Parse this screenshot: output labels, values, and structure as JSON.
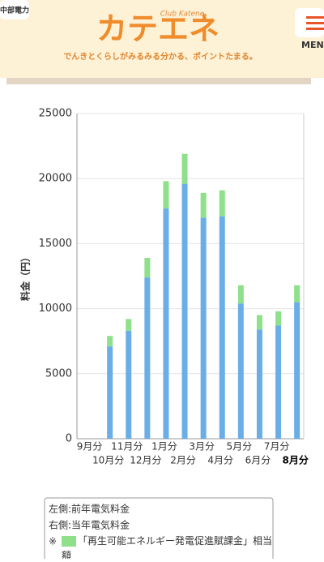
{
  "header": {
    "logo": "中部電力",
    "brand_sub": "Club Katene",
    "brand": "カテエネ",
    "tagline": "でんきとくらしがみるみる分かる、ポイントたまる。",
    "menu": "MENU"
  },
  "chart_data": {
    "type": "bar",
    "stacked": true,
    "y_label": "料金（円）",
    "categories": [
      "9月分",
      "10月分",
      "11月分",
      "12月分",
      "1月分",
      "2月分",
      "3月分",
      "4月分",
      "5月分",
      "6月分",
      "7月分",
      "8月分"
    ],
    "series": [
      {
        "color": "#6aaee8",
        "values": [
          null,
          7100,
          8300,
          12400,
          17700,
          19600,
          17000,
          17100,
          10400,
          8400,
          8700,
          10500
        ]
      },
      {
        "name": "「再生可能エネルギー発電促進賦課金」相当額",
        "color": "#8ee08a",
        "values": [
          null,
          800,
          900,
          1500,
          2100,
          2300,
          1900,
          2000,
          1400,
          1100,
          1100,
          1300
        ]
      }
    ],
    "ylim": [
      0,
      25000
    ],
    "yticks": [
      0,
      5000,
      10000,
      15000,
      20000,
      25000
    ],
    "grid": true
  },
  "legend": {
    "lines": [
      "左側:前年電気料金",
      "右側:当年電気料金"
    ],
    "mark": "※"
  }
}
